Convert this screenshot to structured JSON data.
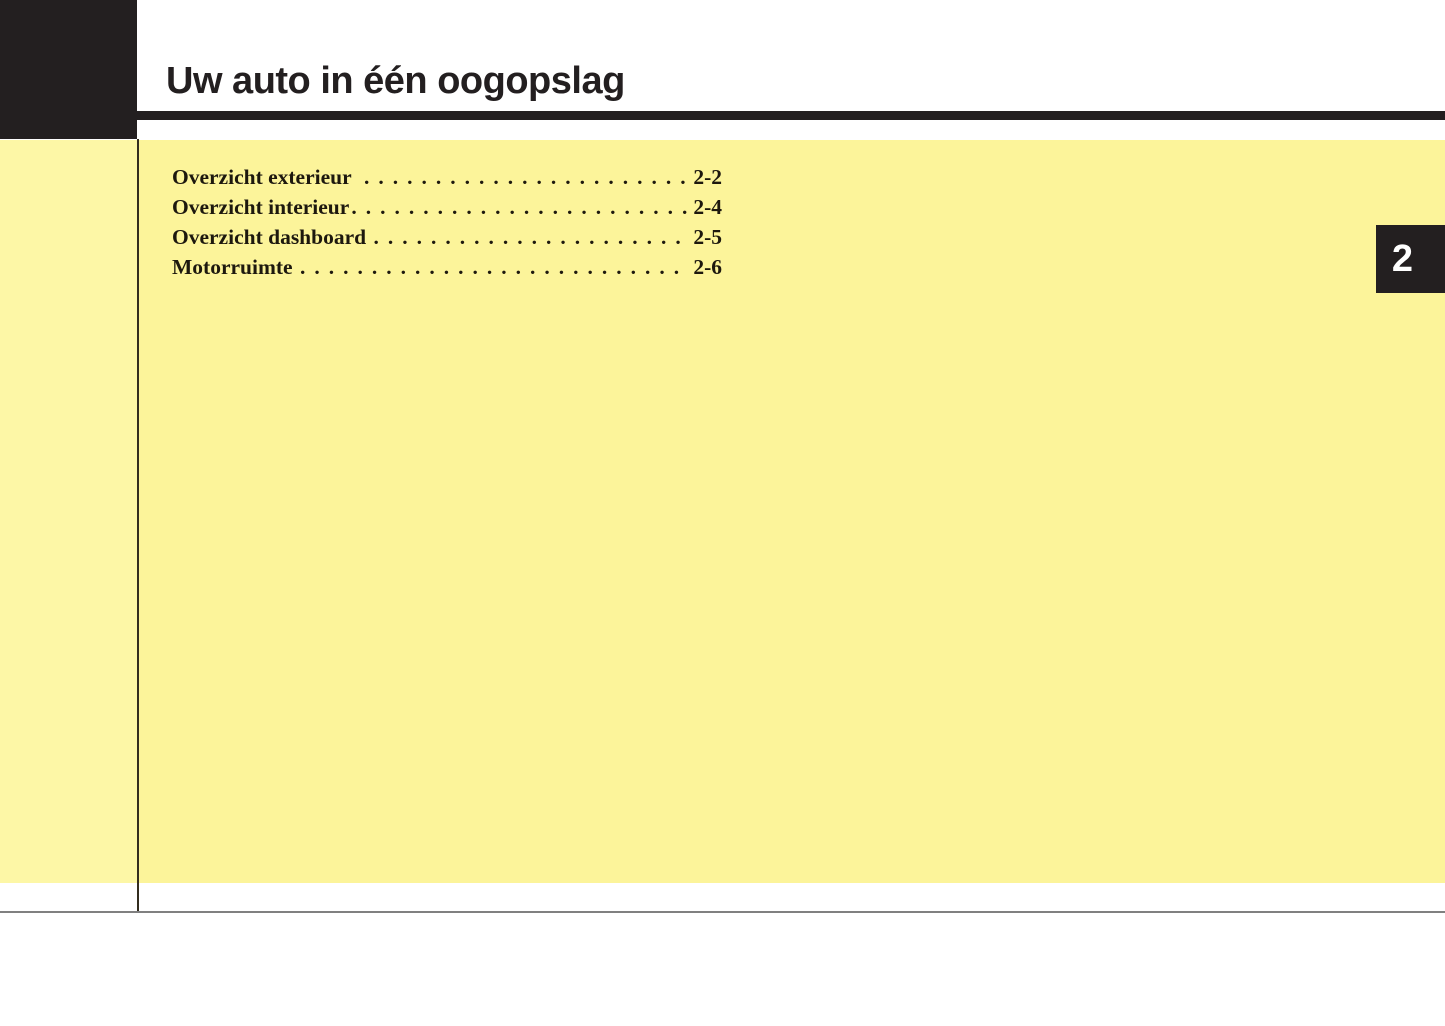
{
  "page": {
    "title": "Uw auto in één oogopslag",
    "chapter_number": "2"
  },
  "toc": {
    "leader_dots": "............................................................",
    "items": [
      {
        "label": "Overzicht exterieur  ",
        "page": "2-2"
      },
      {
        "label": "Overzicht interieur",
        "page": "2-4"
      },
      {
        "label": "Overzicht dashboard ",
        "page": "2-5"
      },
      {
        "label": "Motorruimte ",
        "page": "2-6"
      }
    ]
  },
  "colors": {
    "accent_black": "#231f20",
    "panel_yellow": "#fcf49a",
    "strip_yellow": "#fdf7a6",
    "divider_gray": "#808080",
    "toc_text": "#1d180e",
    "tab_text": "#ffffff"
  }
}
